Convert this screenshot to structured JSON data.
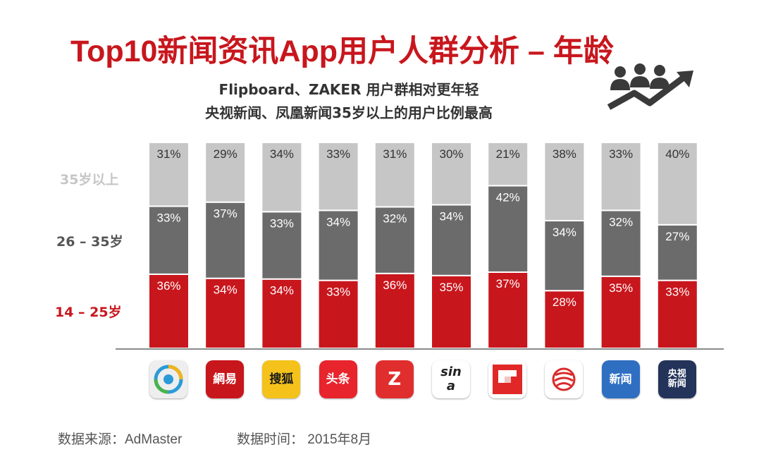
{
  "title": "Top10新闻资讯App用户人群分析 – 年龄",
  "subtitle_line1": "Flipboard、ZAKER 用户群相对更年轻",
  "subtitle_line2": "央视新闻、凤凰新闻35岁以上的用户比例最高",
  "legend": {
    "old": "35岁以上",
    "mid": "26 – 35岁",
    "young": "14 – 25岁"
  },
  "colors": {
    "old": "#c6c6c6",
    "mid": "#6b6b6b",
    "young": "#c8161d",
    "title": "#c8161d"
  },
  "apps": [
    {
      "icon": "qq-news-icon",
      "text": ""
    },
    {
      "icon": "netease-icon",
      "text": "網易"
    },
    {
      "icon": "sohu-icon",
      "text": "搜狐"
    },
    {
      "icon": "toutiao-icon",
      "text": "头条"
    },
    {
      "icon": "zaker-icon",
      "text": "Z"
    },
    {
      "icon": "sina-icon",
      "text": "sina"
    },
    {
      "icon": "flipboard-icon",
      "text": ""
    },
    {
      "icon": "ifeng-icon",
      "text": ""
    },
    {
      "icon": "baidu-news-icon",
      "text": "新闻"
    },
    {
      "icon": "cctv-news-icon",
      "text": "央视新闻"
    }
  ],
  "chart_data": {
    "type": "bar",
    "stacked": true,
    "categories": [
      "",
      "",
      "",
      "",
      "",
      "",
      "",
      "",
      "",
      ""
    ],
    "series": [
      {
        "name": "14 – 25岁",
        "values": [
          36,
          34,
          34,
          33,
          36,
          35,
          37,
          28,
          35,
          33
        ],
        "labels": [
          "36%",
          "34%",
          "34%",
          "33%",
          "36%",
          "35%",
          "37%",
          "28%",
          "35%",
          "33%"
        ]
      },
      {
        "name": "26 – 35岁",
        "values": [
          33,
          37,
          33,
          34,
          32,
          34,
          42,
          34,
          32,
          27
        ],
        "labels": [
          "33%",
          "37%",
          "33%",
          "34%",
          "32%",
          "34%",
          "42%",
          "34%",
          "32%",
          "27%"
        ]
      },
      {
        "name": "35岁以上",
        "values": [
          31,
          29,
          34,
          33,
          31,
          30,
          21,
          38,
          33,
          40
        ],
        "labels": [
          "31%",
          "29%",
          "34%",
          "33%",
          "31%",
          "30%",
          "21%",
          "38%",
          "33%",
          "40%"
        ]
      }
    ],
    "ylim": [
      0,
      100
    ],
    "grid": false,
    "legend": "left"
  },
  "footer": {
    "source": "数据来源：AdMaster",
    "date": "数据时间： 2015年8月"
  }
}
